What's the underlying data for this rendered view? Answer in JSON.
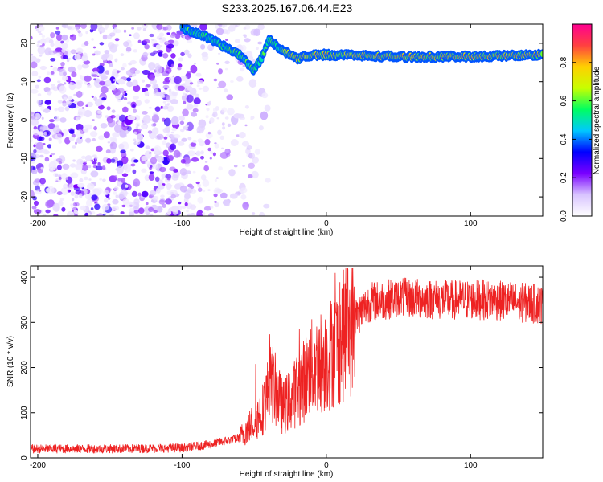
{
  "title": "S233.2025.167.06.44.E23",
  "chart_data": [
    {
      "type": "heatmap",
      "xlabel": "Height of straight line (km)",
      "ylabel": "Frequency (Hz)",
      "xlim": [
        -205,
        150
      ],
      "ylim": [
        -25,
        25
      ],
      "xticks": [
        "-200",
        "-100",
        "0",
        "100"
      ],
      "xtick_values": [
        -200,
        -100,
        0,
        100
      ],
      "yticks": [
        "-20",
        "-10",
        "0",
        "10",
        "20"
      ],
      "ytick_values": [
        -20,
        -10,
        0,
        10,
        20
      ],
      "colorbar": {
        "label": "Normalized spectral amplitude",
        "range": [
          0,
          1
        ],
        "ticks": [
          "0.0",
          "0.2",
          "0.4",
          "0.6",
          "0.8"
        ],
        "tick_values": [
          0.0,
          0.2,
          0.4,
          0.6,
          0.8
        ],
        "colors": [
          "#ffffff",
          "#d8c4ff",
          "#7a00ff",
          "#0000ff",
          "#00c8ff",
          "#00ff60",
          "#c8ff00",
          "#ffd000",
          "#ff4040",
          "#ff0090"
        ]
      },
      "ridge": [
        {
          "x": -100,
          "f": 24
        },
        {
          "x": -85,
          "f": 22
        },
        {
          "x": -70,
          "f": 19
        },
        {
          "x": -60,
          "f": 17
        },
        {
          "x": -50,
          "f": 13
        },
        {
          "x": -45,
          "f": 16
        },
        {
          "x": -40,
          "f": 21
        },
        {
          "x": -30,
          "f": 18
        },
        {
          "x": -20,
          "f": 16
        },
        {
          "x": -10,
          "f": 17
        },
        {
          "x": 0,
          "f": 17
        },
        {
          "x": 50,
          "f": 16.5
        },
        {
          "x": 100,
          "f": 16.5
        },
        {
          "x": 150,
          "f": 17
        }
      ],
      "noise_region": {
        "x_from": -205,
        "x_to": -55
      }
    },
    {
      "type": "line",
      "xlabel": "Height of straight line (km)",
      "ylabel": "SNR (10 * v/v)",
      "xlim": [
        -205,
        150
      ],
      "ylim": [
        0,
        425
      ],
      "xticks": [
        "-200",
        "-100",
        "0",
        "100"
      ],
      "xtick_values": [
        -200,
        -100,
        0,
        100
      ],
      "yticks": [
        "0",
        "100",
        "200",
        "300",
        "400"
      ],
      "ytick_values": [
        0,
        100,
        200,
        300,
        400
      ],
      "line_color": "#ee2222",
      "envelope": [
        {
          "x": -205,
          "y": 20
        },
        {
          "x": -150,
          "y": 20
        },
        {
          "x": -100,
          "y": 22
        },
        {
          "x": -80,
          "y": 30
        },
        {
          "x": -60,
          "y": 45
        },
        {
          "x": -45,
          "y": 100
        },
        {
          "x": -38,
          "y": 170
        },
        {
          "x": -30,
          "y": 110
        },
        {
          "x": -20,
          "y": 150
        },
        {
          "x": -10,
          "y": 200
        },
        {
          "x": 0,
          "y": 220
        },
        {
          "x": 10,
          "y": 260
        },
        {
          "x": 20,
          "y": 310
        },
        {
          "x": 30,
          "y": 345
        },
        {
          "x": 50,
          "y": 355
        },
        {
          "x": 80,
          "y": 350
        },
        {
          "x": 110,
          "y": 350
        },
        {
          "x": 150,
          "y": 340
        }
      ]
    }
  ]
}
